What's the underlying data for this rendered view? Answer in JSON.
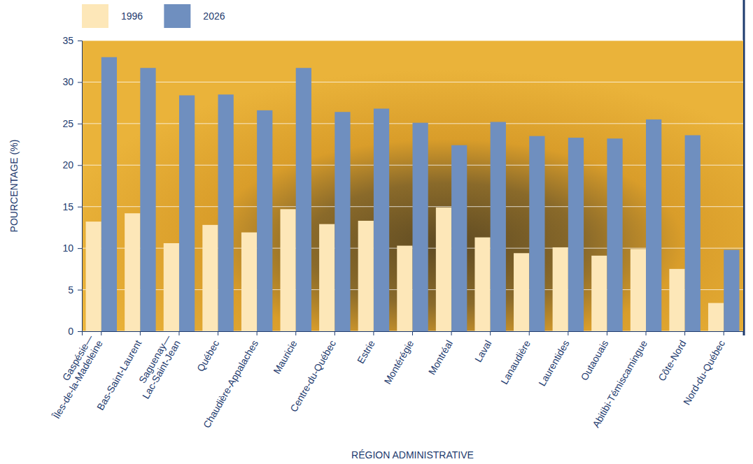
{
  "chart_data": {
    "type": "bar",
    "x_label": "RÉGION ADMINISTRATIVE",
    "y_label": "POURCENTAGE (%)",
    "categories": [
      "Gaspésie—Îles-de-la-Madeleine",
      "Bas-Saint-Laurent",
      "Saguenay—Lac-Saint-Jean",
      "Québec",
      "Chaudière-Appalaches",
      "Mauricie",
      "Centre-du-Québec",
      "Estrie",
      "Montérégie",
      "Montréal",
      "Laval",
      "Lanaudière",
      "Laurentides",
      "Outaouais",
      "Abitibi-Témiscamingue",
      "Côte-Nord",
      "Nord-du-Québec"
    ],
    "series": [
      {
        "name": "1996",
        "color": "#fde7b8",
        "values": [
          13.2,
          14.2,
          10.6,
          12.8,
          11.9,
          14.7,
          12.9,
          13.3,
          10.3,
          14.9,
          11.3,
          9.4,
          10.1,
          9.1,
          9.9,
          7.5,
          3.4
        ]
      },
      {
        "name": "2026",
        "color": "#6f8fbf",
        "values": [
          33.0,
          31.7,
          28.4,
          28.5,
          26.6,
          31.7,
          26.4,
          26.8,
          25.1,
          22.4,
          25.2,
          23.5,
          23.3,
          23.2,
          25.5,
          23.6,
          9.8
        ]
      }
    ],
    "ylim": [
      0,
      35
    ],
    "yticks": [
      0,
      5,
      10,
      15,
      20,
      25,
      30,
      35
    ],
    "grid": true,
    "legend": "top"
  }
}
